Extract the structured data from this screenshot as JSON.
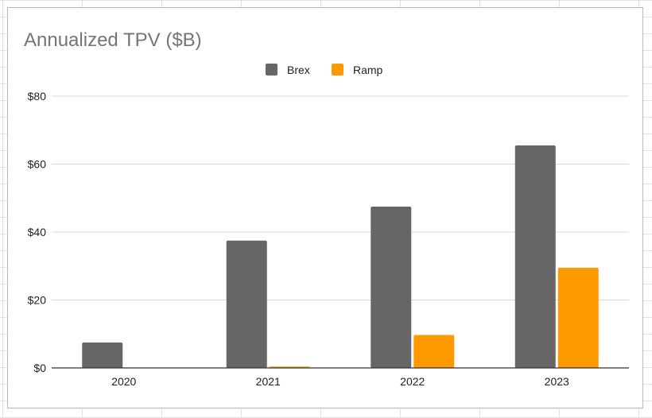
{
  "chart_data": {
    "type": "bar",
    "title": "Annualized TPV ($B)",
    "xlabel": "",
    "ylabel": "",
    "categories": [
      "2020",
      "2021",
      "2022",
      "2023"
    ],
    "series": [
      {
        "name": "Brex",
        "color": "#666666",
        "values": [
          7.5,
          37.5,
          47.5,
          65.5
        ]
      },
      {
        "name": "Ramp",
        "color": "#ff9900",
        "values": [
          0,
          0.4,
          9.7,
          29.5
        ]
      }
    ],
    "ylim": [
      0,
      80
    ],
    "yticks": [
      0,
      20,
      40,
      60,
      80
    ],
    "ytick_labels": [
      "$0",
      "$20",
      "$40",
      "$60",
      "$80"
    ],
    "grid": true,
    "legend_position": "top-center"
  }
}
